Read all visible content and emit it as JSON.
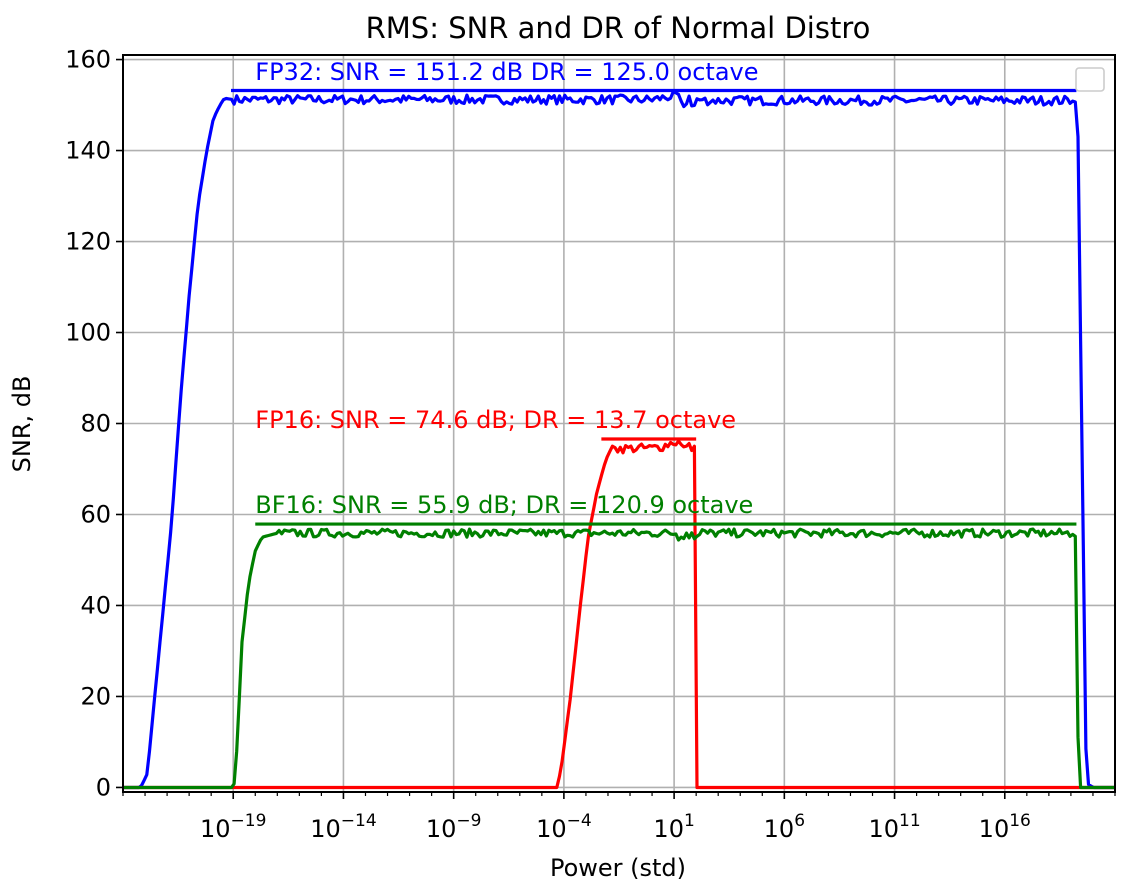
{
  "chart_data": {
    "type": "line",
    "title": "RMS: SNR and DR of Normal Distro",
    "xlabel": "Power (std)",
    "ylabel": "SNR, dB",
    "xscale": "log",
    "x_exp_range": [
      -24,
      21
    ],
    "ylim": [
      -1,
      161
    ],
    "x_tick_exponents": [
      -19,
      -14,
      -9,
      -4,
      1,
      6,
      11,
      16
    ],
    "x_tick_labels": [
      "10",
      "10",
      "10",
      "10",
      "10",
      "10",
      "10",
      "10"
    ],
    "x_tick_sups": [
      "−19",
      "−14",
      "−9",
      "−4",
      "1",
      "6",
      "11",
      "16"
    ],
    "y_ticks": [
      0,
      20,
      40,
      60,
      80,
      100,
      120,
      140,
      160
    ],
    "y_tick_labels": [
      "0",
      "20",
      "40",
      "60",
      "80",
      "100",
      "120",
      "140",
      "160"
    ],
    "grid": true,
    "legend": "top-right (empty)",
    "series": [
      {
        "color": "#0000ff",
        "x_exp": [
          -24,
          -23.2,
          -22.9,
          -22.6,
          -22.2,
          -21.8,
          -21.4,
          -21.0,
          -20.6,
          -20.2,
          -19.9,
          -19.6,
          -19.4,
          -19.0,
          0,
          1,
          1.5,
          2,
          19,
          19.3,
          19.7,
          20,
          21
        ],
        "y": [
          0,
          0,
          3,
          18,
          38,
          58,
          85,
          108,
          128,
          140,
          147,
          150,
          151.5,
          151.2,
          151.2,
          152,
          150,
          151,
          151,
          150.5,
          1,
          0,
          0
        ],
        "noise": 1.0,
        "noise_range": [
          -19.0,
          19.0
        ]
      },
      {
        "color": "#ff0000",
        "x_exp": [
          -24,
          -4.6,
          -4.3,
          -4.1,
          -3.7,
          -3.3,
          -2.9,
          -2.5,
          -2.1,
          -1.8,
          -1.6,
          0,
          0.5,
          1,
          1.5,
          2.0,
          2.02,
          21
        ],
        "y": [
          0,
          0,
          0,
          5,
          20,
          38,
          55,
          65,
          72,
          75,
          74.5,
          74.6,
          75,
          76,
          75,
          74,
          0,
          0
        ],
        "noise": 1.0,
        "noise_range": [
          -1.6,
          2.0
        ]
      },
      {
        "color": "#008000",
        "x_exp": [
          -24,
          -19.0,
          -18.9,
          -18.8,
          -18.6,
          -18.3,
          -18.0,
          -17.7,
          -17.3,
          -17.0,
          19.0,
          19.2,
          19.35,
          21
        ],
        "y": [
          0,
          0,
          2,
          12,
          32,
          45,
          52,
          55,
          55.5,
          55.9,
          55.9,
          55.2,
          0,
          0
        ],
        "noise": 0.9,
        "noise_range": [
          -17.0,
          19.0
        ]
      }
    ],
    "reference_lines": [
      {
        "color": "#0000ff",
        "x_exp": [
          -19.1,
          19.25
        ],
        "y": 153.2
      },
      {
        "color": "#ff0000",
        "x_exp": [
          -2.3,
          2.0
        ],
        "y": 76.6
      },
      {
        "color": "#008000",
        "x_exp": [
          -18.0,
          19.25
        ],
        "y": 57.9
      }
    ],
    "annotations": [
      {
        "text": "FP32: SNR = 151.2 dB  DR = 125.0 octave",
        "color": "#0000ff",
        "x_exp": -18.0,
        "y": 155.5
      },
      {
        "text": "FP16: SNR = 74.6 dB; DR = 13.7 octave",
        "color": "#ff0000",
        "x_exp": -18.0,
        "y": 79.0
      },
      {
        "text": "BF16: SNR = 55.9 dB; DR = 120.9 octave",
        "color": "#008000",
        "x_exp": -18.0,
        "y": 60.3
      }
    ]
  }
}
